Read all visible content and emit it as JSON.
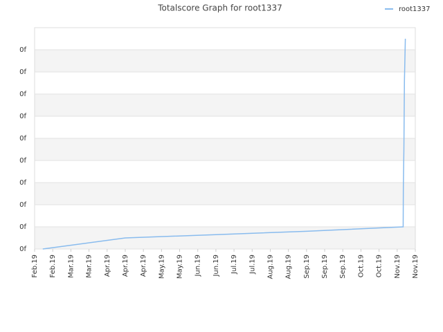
{
  "chart_data": {
    "type": "line",
    "title": "Totalscore Graph for root1337",
    "x": [
      0.45,
      5,
      10,
      15,
      20.3,
      20.33,
      20.34,
      20.37,
      20.4,
      20.45
    ],
    "series": [
      {
        "name": "root1337",
        "color": "#88bbee",
        "values": [
          0,
          0.5,
          0.65,
          0.8,
          1.0,
          1.0,
          2.8,
          4.5,
          7.6,
          9.5
        ]
      }
    ],
    "xlim": [
      0,
      21
    ],
    "xticks": [
      {
        "value": 0,
        "label": "Feb.19"
      },
      {
        "value": 1,
        "label": "Feb.19"
      },
      {
        "value": 2,
        "label": "Mar.19"
      },
      {
        "value": 3,
        "label": "Mar.19"
      },
      {
        "value": 4,
        "label": "Apr.19"
      },
      {
        "value": 5,
        "label": "Apr.19"
      },
      {
        "value": 6,
        "label": "Apr.19"
      },
      {
        "value": 7,
        "label": "May.19"
      },
      {
        "value": 8,
        "label": "May.19"
      },
      {
        "value": 9,
        "label": "Jun.19"
      },
      {
        "value": 10,
        "label": "Jun.19"
      },
      {
        "value": 11,
        "label": "Jul.19"
      },
      {
        "value": 12,
        "label": "Jul.19"
      },
      {
        "value": 13,
        "label": "Aug.19"
      },
      {
        "value": 14,
        "label": "Aug.19"
      },
      {
        "value": 15,
        "label": "Sep.19"
      },
      {
        "value": 16,
        "label": "Sep.19"
      },
      {
        "value": 17,
        "label": "Sep.19"
      },
      {
        "value": 18,
        "label": "Oct.19"
      },
      {
        "value": 19,
        "label": "Oct.19"
      },
      {
        "value": 20,
        "label": "Nov.19"
      },
      {
        "value": 21,
        "label": "Nov.19"
      }
    ],
    "ylim": [
      0,
      10
    ],
    "yticks": [
      {
        "value": 0,
        "label": "0f"
      },
      {
        "value": 1,
        "label": "0f"
      },
      {
        "value": 2,
        "label": "0f"
      },
      {
        "value": 3,
        "label": "0f"
      },
      {
        "value": 4,
        "label": "0f"
      },
      {
        "value": 5,
        "label": "0f"
      },
      {
        "value": 6,
        "label": "0f"
      },
      {
        "value": 7,
        "label": "0f"
      },
      {
        "value": 8,
        "label": "0f"
      },
      {
        "value": 9,
        "label": "0f"
      }
    ],
    "grid": true,
    "legend": "top-right"
  }
}
